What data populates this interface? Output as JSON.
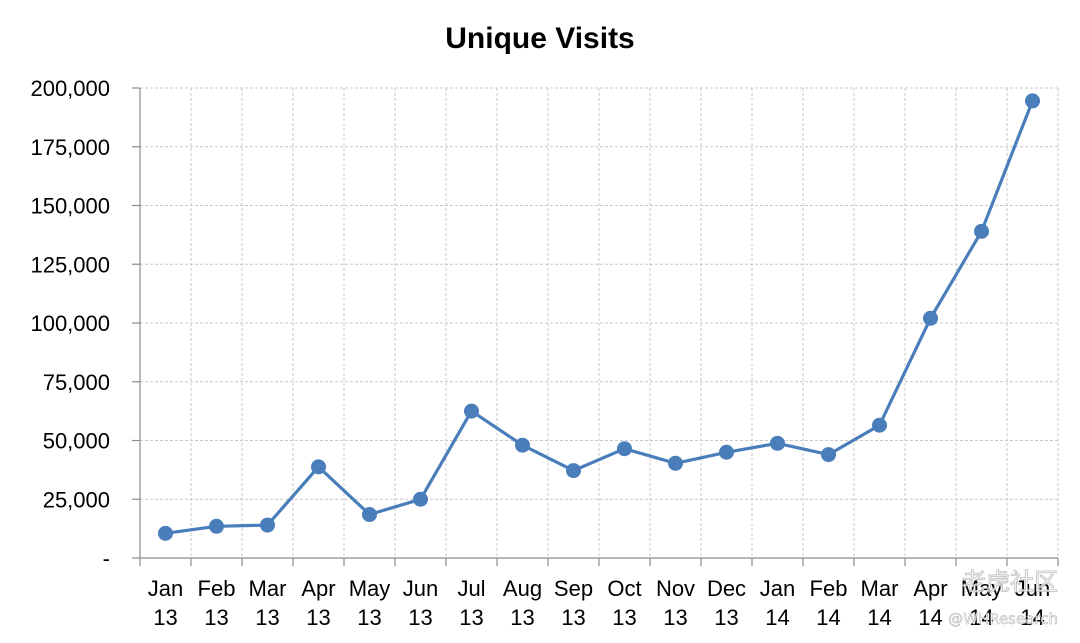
{
  "chart_data": {
    "type": "line",
    "title": "Unique Visits",
    "xlabel": "",
    "ylabel": "",
    "categories": [
      [
        "Jan",
        "13"
      ],
      [
        "Feb",
        "13"
      ],
      [
        "Mar",
        "13"
      ],
      [
        "Apr",
        "13"
      ],
      [
        "May",
        "13"
      ],
      [
        "Jun",
        "13"
      ],
      [
        "Jul",
        "13"
      ],
      [
        "Aug",
        "13"
      ],
      [
        "Sep",
        "13"
      ],
      [
        "Oct",
        "13"
      ],
      [
        "Nov",
        "13"
      ],
      [
        "Dec",
        "13"
      ],
      [
        "Jan",
        "14"
      ],
      [
        "Feb",
        "14"
      ],
      [
        "Mar",
        "14"
      ],
      [
        "Apr",
        "14"
      ],
      [
        "May",
        "14"
      ],
      [
        "Jun",
        "14"
      ]
    ],
    "series": [
      {
        "color": "#4a7ebb",
        "values": [
          10500,
          13500,
          14000,
          38800,
          18500,
          25000,
          62500,
          48000,
          37200,
          46500,
          40300,
          45000,
          48800,
          44000,
          56500,
          102000,
          139000,
          194500
        ]
      }
    ],
    "ylim": [
      0,
      200000
    ],
    "yticks": [
      0,
      25000,
      50000,
      75000,
      100000,
      125000,
      150000,
      175000,
      200000
    ],
    "ytick_labels": [
      "-",
      "25,000",
      "50,000",
      "75,000",
      "100,000",
      "125,000",
      "150,000",
      "175,000",
      "200,000"
    ],
    "grid": true,
    "legend": "none",
    "watermark": [
      "@WHResearch",
      "老虎社区"
    ]
  }
}
